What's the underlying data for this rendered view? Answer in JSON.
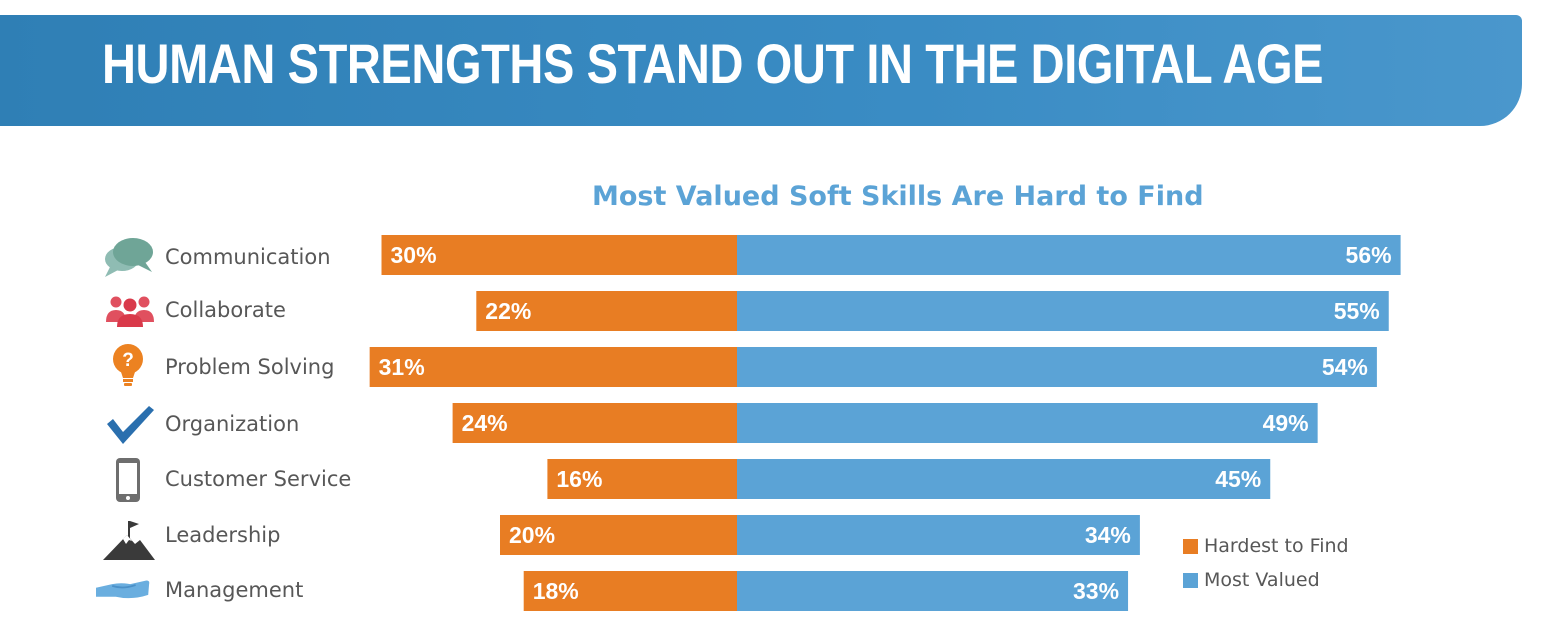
{
  "header": {
    "title": "HUMAN STRENGTHS STAND OUT IN THE DIGITAL AGE"
  },
  "colors": {
    "banner": "#3a8cc4",
    "hardest": "#e87d23",
    "valued": "#5ba3d6",
    "text": "#575757"
  },
  "chart_data": {
    "type": "bar",
    "title": "Most Valued Soft Skills Are Hard to Find",
    "orientation": "horizontal-diverging",
    "categories": [
      "Communication",
      "Collaborate",
      "Problem Solving",
      "Organization",
      "Customer Service",
      "Leadership",
      "Management"
    ],
    "icons": [
      "speech-bubbles-icon",
      "people-group-icon",
      "lightbulb-question-icon",
      "checkmark-icon",
      "smartphone-icon",
      "mountain-flag-icon",
      "open-hand-icon"
    ],
    "series": [
      {
        "name": "Hardest to Find",
        "color": "#e87d23",
        "values": [
          30,
          22,
          31,
          24,
          16,
          20,
          18
        ],
        "labels": [
          "30%",
          "22%",
          "31%",
          "24%",
          "16%",
          "20%",
          "18%"
        ]
      },
      {
        "name": "Most Valued",
        "color": "#5ba3d6",
        "values": [
          56,
          55,
          54,
          49,
          45,
          34,
          33
        ],
        "labels": [
          "56%",
          "55%",
          "54%",
          "49%",
          "45%",
          "34%",
          "33%"
        ]
      }
    ],
    "legend_position": "bottom-right"
  }
}
